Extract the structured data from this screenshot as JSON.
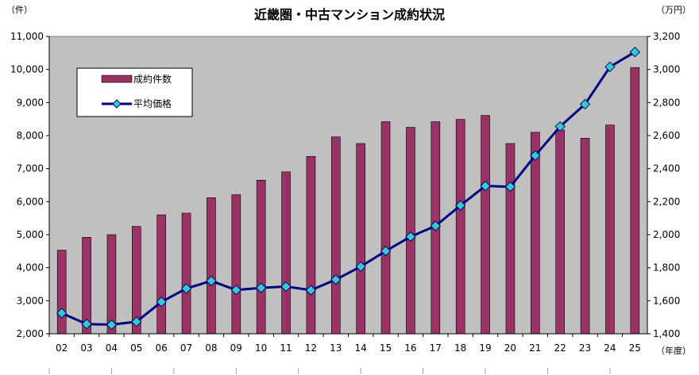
{
  "chart_data": {
    "type": "bar+line",
    "title": "近畿圏・中古マンション成約状況",
    "categories": [
      "02",
      "03",
      "04",
      "05",
      "06",
      "07",
      "08",
      "09",
      "10",
      "11",
      "12",
      "13",
      "14",
      "15",
      "16",
      "17",
      "18",
      "19",
      "20",
      "21",
      "22",
      "23",
      "24",
      "25"
    ],
    "xunit": "（年度）",
    "series": [
      {
        "name": "成約件数",
        "type": "bar",
        "axis": "left",
        "color": "#993366",
        "values": [
          4530,
          4920,
          5000,
          5250,
          5600,
          5650,
          6120,
          6210,
          6650,
          6900,
          7370,
          7960,
          7760,
          8420,
          8250,
          8420,
          8490,
          8610,
          7760,
          8100,
          8170,
          7920,
          8320,
          10060
        ]
      },
      {
        "name": "平均価格",
        "type": "line",
        "axis": "right",
        "color": "#000080",
        "marker_color": "#33CCCC",
        "values": [
          1525,
          1459,
          1455,
          1473,
          1593,
          1674,
          1720,
          1665,
          1678,
          1686,
          1664,
          1728,
          1807,
          1901,
          1988,
          2053,
          2177,
          2295,
          2290,
          2479,
          2655,
          2790,
          3016,
          3106
        ]
      }
    ],
    "y_left": {
      "unit": "（件）",
      "ylim": [
        2000,
        11000
      ],
      "ticks": [
        "2,000",
        "3,000",
        "4,000",
        "5,000",
        "6,000",
        "7,000",
        "8,000",
        "9,000",
        "10,000",
        "11,000"
      ]
    },
    "y_right": {
      "unit": "（万円）",
      "ylim": [
        1400,
        3200
      ],
      "ticks": [
        "1,400",
        "1,600",
        "1,800",
        "2,000",
        "2,200",
        "2,400",
        "2,600",
        "2,800",
        "3,000",
        "3,200"
      ]
    },
    "plot_background": "#C0C0C0",
    "grid": false,
    "legend_position": "top-left"
  }
}
